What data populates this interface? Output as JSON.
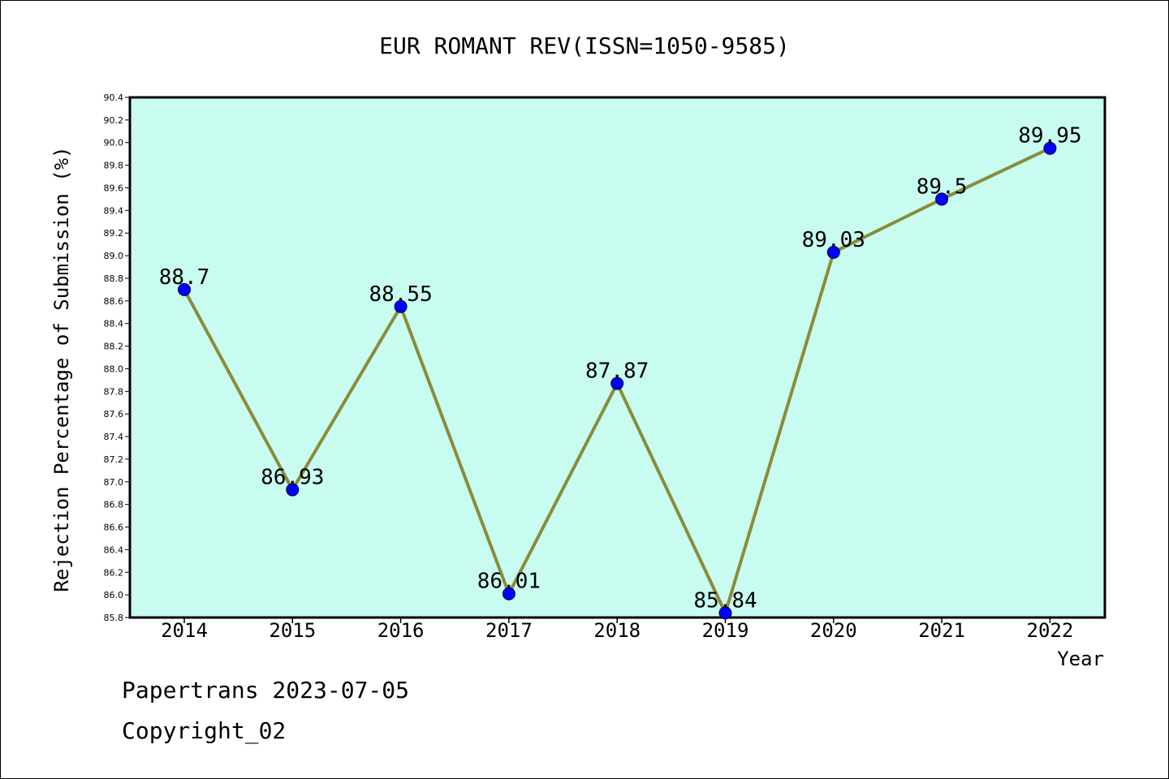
{
  "chart_data": {
    "type": "line",
    "title": "EUR ROMANT REV(ISSN=1050-9585)",
    "xlabel": "Year",
    "ylabel": "Rejection Percentage of Submission (%)",
    "categories": [
      "2014",
      "2015",
      "2016",
      "2017",
      "2018",
      "2019",
      "2020",
      "2021",
      "2022"
    ],
    "values": [
      88.7,
      86.93,
      88.55,
      86.01,
      87.87,
      85.84,
      89.03,
      89.5,
      89.95
    ],
    "data_labels": [
      "88.7",
      "86.93",
      "88.55",
      "86.01",
      "87.87",
      "85.84",
      "89.03",
      "89.5",
      "89.95"
    ],
    "ylim": [
      85.8,
      90.4
    ],
    "yticks": [
      "85.8",
      "86.0",
      "86.2",
      "86.4",
      "86.6",
      "86.8",
      "87.0",
      "87.2",
      "87.4",
      "87.6",
      "87.8",
      "88.0",
      "88.2",
      "88.4",
      "88.6",
      "88.8",
      "89.0",
      "89.2",
      "89.4",
      "89.6",
      "89.8",
      "90.0",
      "90.2",
      "90.4"
    ],
    "grid": false,
    "legend": "none",
    "colors": {
      "plot_background": "#c8fcf0",
      "line": "#8b8b3a",
      "marker": "#0000ff"
    }
  },
  "footer": {
    "line1": "Papertrans 2023-07-05",
    "line2": "Copyright_02"
  }
}
